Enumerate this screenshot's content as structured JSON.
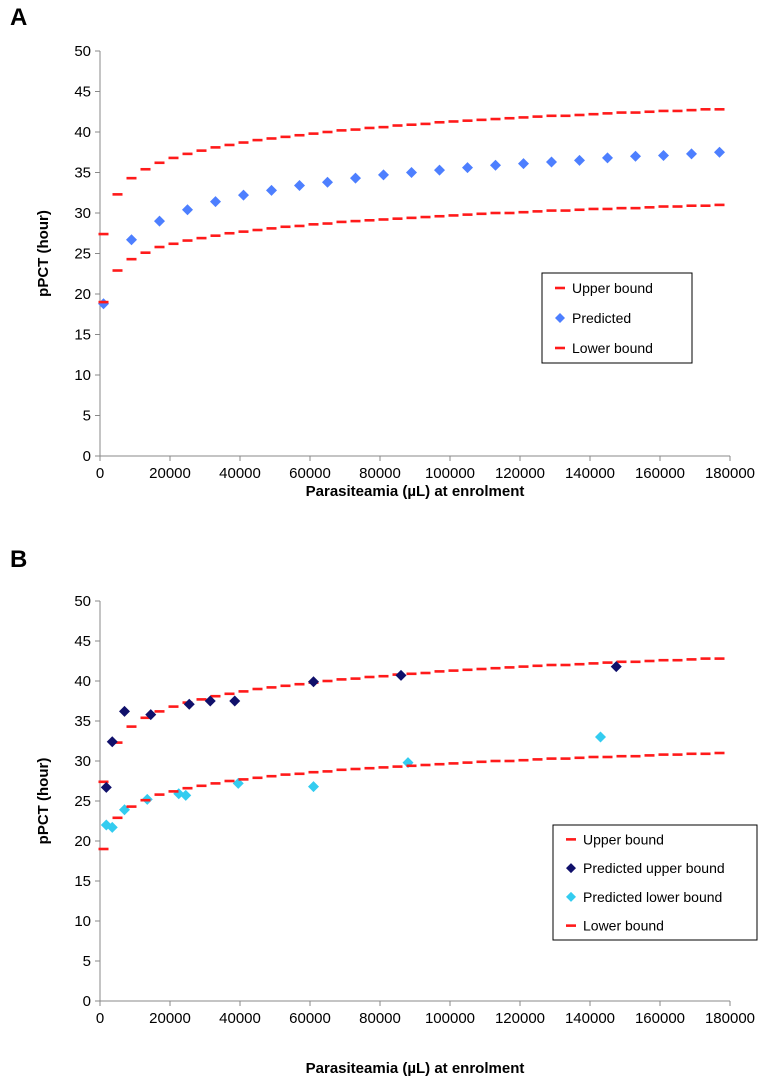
{
  "chart_data": [
    {
      "panel_label": "A",
      "type": "scatter",
      "xlabel": "Parasiteamia (µL) at enrolment",
      "ylabel": "pPCT (hour)",
      "xlim": [
        0,
        180000
      ],
      "ylim": [
        0,
        50
      ],
      "x_ticks": [
        0,
        20000,
        40000,
        60000,
        80000,
        100000,
        120000,
        140000,
        160000,
        180000
      ],
      "y_ticks": [
        0,
        5,
        10,
        15,
        20,
        25,
        30,
        35,
        40,
        45,
        50
      ],
      "grid": false,
      "legend_position": "right-middle",
      "series": [
        {
          "name": "Upper bound",
          "style": "dash",
          "color": "#ff1a1a",
          "x": [
            1000,
            5000,
            9000,
            13000,
            17000,
            21000,
            25000,
            29000,
            33000,
            37000,
            41000,
            45000,
            49000,
            53000,
            57000,
            61000,
            65000,
            69000,
            73000,
            77000,
            81000,
            85000,
            89000,
            93000,
            97000,
            101000,
            105000,
            109000,
            113000,
            117000,
            121000,
            125000,
            129000,
            133000,
            137000,
            141000,
            145000,
            149000,
            153000,
            157000,
            161000,
            165000,
            169000,
            173000,
            177000
          ],
          "y": [
            27.4,
            32.3,
            34.3,
            35.4,
            36.2,
            36.8,
            37.3,
            37.7,
            38.1,
            38.4,
            38.7,
            39.0,
            39.2,
            39.4,
            39.6,
            39.8,
            40.0,
            40.2,
            40.3,
            40.5,
            40.6,
            40.8,
            40.9,
            41.0,
            41.2,
            41.3,
            41.4,
            41.5,
            41.6,
            41.7,
            41.8,
            41.9,
            42.0,
            42.0,
            42.1,
            42.2,
            42.3,
            42.4,
            42.4,
            42.5,
            42.6,
            42.6,
            42.7,
            42.8,
            42.8
          ]
        },
        {
          "name": "Predicted",
          "style": "diamond",
          "color": "#4d7fff",
          "x": [
            1000,
            9000,
            17000,
            25000,
            33000,
            41000,
            49000,
            57000,
            65000,
            73000,
            81000,
            89000,
            97000,
            105000,
            113000,
            121000,
            129000,
            137000,
            145000,
            153000,
            161000,
            169000,
            177000
          ],
          "y": [
            18.8,
            26.7,
            29.0,
            30.4,
            31.4,
            32.2,
            32.8,
            33.4,
            33.8,
            34.3,
            34.7,
            35.0,
            35.3,
            35.6,
            35.9,
            36.1,
            36.3,
            36.5,
            36.8,
            37.0,
            37.1,
            37.3,
            37.5
          ]
        },
        {
          "name": "Lower bound",
          "style": "dash",
          "color": "#ff1a1a",
          "x": [
            1000,
            5000,
            9000,
            13000,
            17000,
            21000,
            25000,
            29000,
            33000,
            37000,
            41000,
            45000,
            49000,
            53000,
            57000,
            61000,
            65000,
            69000,
            73000,
            77000,
            81000,
            85000,
            89000,
            93000,
            97000,
            101000,
            105000,
            109000,
            113000,
            117000,
            121000,
            125000,
            129000,
            133000,
            137000,
            141000,
            145000,
            149000,
            153000,
            157000,
            161000,
            165000,
            169000,
            173000,
            177000
          ],
          "y": [
            19.0,
            22.9,
            24.3,
            25.1,
            25.8,
            26.2,
            26.6,
            26.9,
            27.2,
            27.5,
            27.7,
            27.9,
            28.1,
            28.3,
            28.4,
            28.6,
            28.7,
            28.9,
            29.0,
            29.1,
            29.2,
            29.3,
            29.4,
            29.5,
            29.6,
            29.7,
            29.8,
            29.9,
            30.0,
            30.0,
            30.1,
            30.2,
            30.3,
            30.3,
            30.4,
            30.5,
            30.5,
            30.6,
            30.6,
            30.7,
            30.8,
            30.8,
            30.9,
            30.9,
            31.0
          ]
        }
      ]
    },
    {
      "panel_label": "B",
      "type": "scatter",
      "xlabel": "Parasiteamia (µL) at enrolment",
      "ylabel": "pPCT (hour)",
      "xlim": [
        0,
        180000
      ],
      "ylim": [
        0,
        50
      ],
      "x_ticks": [
        0,
        20000,
        40000,
        60000,
        80000,
        100000,
        120000,
        140000,
        160000,
        180000
      ],
      "y_ticks": [
        0,
        5,
        10,
        15,
        20,
        25,
        30,
        35,
        40,
        45,
        50
      ],
      "grid": false,
      "legend_position": "right-middle",
      "series": [
        {
          "name": "Upper bound",
          "style": "dash",
          "color": "#ff1a1a",
          "x": [
            1000,
            5000,
            9000,
            13000,
            17000,
            21000,
            25000,
            29000,
            33000,
            37000,
            41000,
            45000,
            49000,
            53000,
            57000,
            61000,
            65000,
            69000,
            73000,
            77000,
            81000,
            85000,
            89000,
            93000,
            97000,
            101000,
            105000,
            109000,
            113000,
            117000,
            121000,
            125000,
            129000,
            133000,
            137000,
            141000,
            145000,
            149000,
            153000,
            157000,
            161000,
            165000,
            169000,
            173000,
            177000
          ],
          "y": [
            27.4,
            32.3,
            34.3,
            35.4,
            36.2,
            36.8,
            37.3,
            37.7,
            38.1,
            38.4,
            38.7,
            39.0,
            39.2,
            39.4,
            39.6,
            39.8,
            40.0,
            40.2,
            40.3,
            40.5,
            40.6,
            40.8,
            40.9,
            41.0,
            41.2,
            41.3,
            41.4,
            41.5,
            41.6,
            41.7,
            41.8,
            41.9,
            42.0,
            42.0,
            42.1,
            42.2,
            42.3,
            42.4,
            42.4,
            42.5,
            42.6,
            42.6,
            42.7,
            42.8,
            42.8
          ]
        },
        {
          "name": "Predicted upper bound",
          "style": "diamond",
          "color": "#10106b",
          "x": [
            1800,
            3500,
            7000,
            14500,
            25500,
            31500,
            38500,
            61000,
            86000,
            147500
          ],
          "y": [
            26.7,
            32.4,
            36.2,
            35.8,
            37.1,
            37.5,
            37.5,
            39.9,
            40.7,
            41.8
          ]
        },
        {
          "name": "Predicted lower bound",
          "style": "diamond",
          "color": "#33ccf0",
          "x": [
            1800,
            3500,
            7000,
            13500,
            22500,
            24500,
            39500,
            61000,
            88000,
            143000
          ],
          "y": [
            22.0,
            21.7,
            23.9,
            25.2,
            25.9,
            25.7,
            27.2,
            26.8,
            29.8,
            33.0
          ]
        },
        {
          "name": "Lower bound",
          "style": "dash",
          "color": "#ff1a1a",
          "x": [
            1000,
            5000,
            9000,
            13000,
            17000,
            21000,
            25000,
            29000,
            33000,
            37000,
            41000,
            45000,
            49000,
            53000,
            57000,
            61000,
            65000,
            69000,
            73000,
            77000,
            81000,
            85000,
            89000,
            93000,
            97000,
            101000,
            105000,
            109000,
            113000,
            117000,
            121000,
            125000,
            129000,
            133000,
            137000,
            141000,
            145000,
            149000,
            153000,
            157000,
            161000,
            165000,
            169000,
            173000,
            177000
          ],
          "y": [
            19.0,
            22.9,
            24.3,
            25.1,
            25.8,
            26.2,
            26.6,
            26.9,
            27.2,
            27.5,
            27.7,
            27.9,
            28.1,
            28.3,
            28.4,
            28.6,
            28.7,
            28.9,
            29.0,
            29.1,
            29.2,
            29.3,
            29.4,
            29.5,
            29.6,
            29.7,
            29.8,
            29.9,
            30.0,
            30.0,
            30.1,
            30.2,
            30.3,
            30.3,
            30.4,
            30.5,
            30.5,
            30.6,
            30.6,
            30.7,
            30.8,
            30.8,
            30.9,
            30.9,
            31.0
          ]
        }
      ]
    }
  ]
}
